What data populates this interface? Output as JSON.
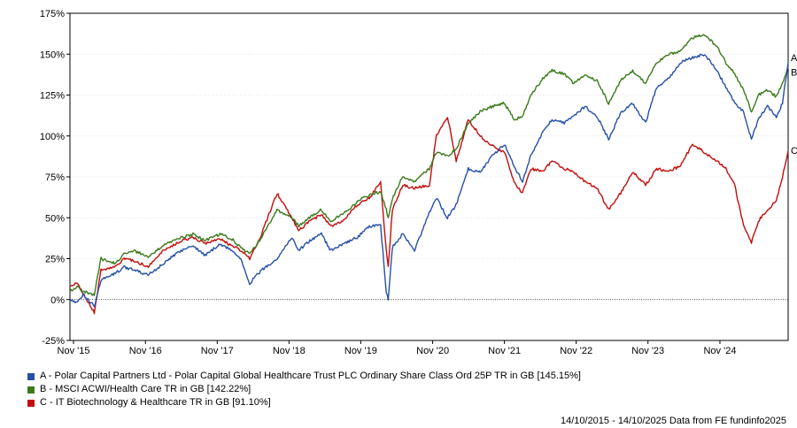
{
  "chart_data": {
    "type": "line",
    "title": "",
    "xlabel": "",
    "ylabel": "",
    "ylim": [
      -25,
      175
    ],
    "y_ticks": [
      "175%",
      "150%",
      "125%",
      "100%",
      "75%",
      "50%",
      "25%",
      "0%",
      "-25%"
    ],
    "y_tick_values": [
      175,
      150,
      125,
      100,
      75,
      50,
      25,
      0,
      -25
    ],
    "x_range": [
      "2015-10-14",
      "2025-10-14"
    ],
    "x_ticks": [
      "Nov '15",
      "Nov '16",
      "Nov '17",
      "Nov '18",
      "Nov '19",
      "Nov '20",
      "Nov '21",
      "Nov '22",
      "Nov '23",
      "Nov '24"
    ],
    "x_tick_dates": [
      "2015-11-01",
      "2016-11-01",
      "2017-11-01",
      "2018-11-01",
      "2019-11-01",
      "2020-11-01",
      "2021-11-01",
      "2022-11-01",
      "2023-11-01",
      "2024-11-01"
    ],
    "grid": "horizontal dotted",
    "zero_line": "dotted",
    "series": [
      {
        "name": "A - Polar Capital Partners Ltd - Polar Capital Global Healthcare Trust PLC Ordinary Share Class Ord 25P TR in GB [145.15%]",
        "end_label": "A",
        "color": "#2650a6",
        "x": [
          "2015-10-14",
          "2015-11-20",
          "2015-12-20",
          "2016-02-15",
          "2016-03-20",
          "2016-06-01",
          "2016-07-15",
          "2016-09-01",
          "2016-11-15",
          "2017-02-01",
          "2017-05-01",
          "2017-07-01",
          "2017-09-01",
          "2017-11-15",
          "2018-01-15",
          "2018-03-01",
          "2018-04-15",
          "2018-06-15",
          "2018-09-01",
          "2018-11-15",
          "2018-12-20",
          "2019-02-15",
          "2019-04-15",
          "2019-06-01",
          "2019-08-01",
          "2019-10-15",
          "2019-12-15",
          "2020-02-10",
          "2020-03-10",
          "2020-03-20",
          "2020-04-10",
          "2020-06-01",
          "2020-08-01",
          "2020-10-15",
          "2020-11-20",
          "2021-01-15",
          "2021-03-01",
          "2021-05-01",
          "2021-07-01",
          "2021-09-01",
          "2021-11-01",
          "2021-12-20",
          "2022-02-01",
          "2022-03-15",
          "2022-05-15",
          "2022-07-01",
          "2022-09-01",
          "2022-10-20",
          "2022-12-15",
          "2023-02-15",
          "2023-04-15",
          "2023-06-15",
          "2023-08-15",
          "2023-10-20",
          "2023-12-15",
          "2024-02-15",
          "2024-04-15",
          "2024-06-15",
          "2024-08-15",
          "2024-10-15",
          "2024-12-01",
          "2025-01-15",
          "2025-03-01",
          "2025-04-10",
          "2025-05-15",
          "2025-07-01",
          "2025-08-15",
          "2025-09-15",
          "2025-10-14"
        ],
        "values": [
          0,
          -2,
          3,
          -4,
          12,
          16,
          20,
          18,
          15,
          22,
          30,
          33,
          27,
          34,
          30,
          25,
          10,
          18,
          25,
          38,
          30,
          36,
          40,
          30,
          34,
          38,
          45,
          45,
          5,
          0,
          32,
          40,
          30,
          53,
          62,
          50,
          58,
          80,
          78,
          88,
          95,
          82,
          72,
          88,
          102,
          110,
          108,
          112,
          118,
          112,
          98,
          114,
          120,
          108,
          130,
          135,
          145,
          148,
          150,
          140,
          130,
          120,
          115,
          98,
          110,
          118,
          112,
          120,
          145.15
        ]
      },
      {
        "name": "B - MSCI ACWI/Health Care TR in GB [142.22%]",
        "end_label": "B",
        "color": "#3a7a1b",
        "x": [
          "2015-10-14",
          "2015-11-20",
          "2015-12-20",
          "2016-02-15",
          "2016-03-20",
          "2016-06-01",
          "2016-07-15",
          "2016-09-01",
          "2016-11-15",
          "2017-02-01",
          "2017-05-01",
          "2017-07-01",
          "2017-09-01",
          "2017-11-15",
          "2018-01-15",
          "2018-03-01",
          "2018-04-15",
          "2018-06-15",
          "2018-09-01",
          "2018-11-15",
          "2018-12-20",
          "2019-02-15",
          "2019-04-15",
          "2019-06-01",
          "2019-08-01",
          "2019-10-15",
          "2019-12-15",
          "2020-02-10",
          "2020-03-10",
          "2020-03-20",
          "2020-04-10",
          "2020-06-01",
          "2020-08-01",
          "2020-10-15",
          "2020-11-20",
          "2021-01-15",
          "2021-03-01",
          "2021-05-01",
          "2021-07-01",
          "2021-09-01",
          "2021-11-01",
          "2021-12-20",
          "2022-02-01",
          "2022-03-15",
          "2022-05-15",
          "2022-07-01",
          "2022-09-01",
          "2022-10-20",
          "2022-12-15",
          "2023-02-15",
          "2023-04-15",
          "2023-06-15",
          "2023-08-15",
          "2023-10-20",
          "2023-12-15",
          "2024-02-15",
          "2024-04-15",
          "2024-06-15",
          "2024-08-15",
          "2024-10-15",
          "2024-12-01",
          "2025-01-15",
          "2025-03-01",
          "2025-04-10",
          "2025-05-15",
          "2025-07-01",
          "2025-08-15",
          "2025-09-15",
          "2025-10-14"
        ],
        "values": [
          5,
          8,
          5,
          3,
          25,
          22,
          28,
          30,
          26,
          33,
          38,
          40,
          36,
          40,
          37,
          32,
          28,
          38,
          55,
          50,
          45,
          50,
          55,
          48,
          52,
          60,
          64,
          66,
          55,
          50,
          62,
          75,
          72,
          80,
          90,
          88,
          92,
          108,
          115,
          118,
          120,
          110,
          112,
          125,
          135,
          140,
          138,
          132,
          137,
          134,
          120,
          134,
          140,
          132,
          145,
          150,
          152,
          160,
          162,
          155,
          145,
          138,
          128,
          115,
          125,
          128,
          124,
          132,
          142.22
        ]
      },
      {
        "name": "C - IT Biotechnology & Healthcare TR in GB [91.10%]",
        "end_label": "C",
        "color": "#c40c0c",
        "x": [
          "2015-10-14",
          "2015-11-20",
          "2015-12-20",
          "2016-02-15",
          "2016-03-20",
          "2016-06-01",
          "2016-07-15",
          "2016-09-01",
          "2016-11-15",
          "2017-02-01",
          "2017-05-01",
          "2017-07-01",
          "2017-09-01",
          "2017-11-15",
          "2018-01-15",
          "2018-03-01",
          "2018-04-15",
          "2018-06-15",
          "2018-09-01",
          "2018-11-15",
          "2018-12-20",
          "2019-02-15",
          "2019-04-15",
          "2019-06-01",
          "2019-08-01",
          "2019-10-15",
          "2019-12-15",
          "2020-02-10",
          "2020-03-10",
          "2020-03-20",
          "2020-04-10",
          "2020-06-01",
          "2020-08-01",
          "2020-10-15",
          "2020-11-20",
          "2021-01-15",
          "2021-03-01",
          "2021-05-01",
          "2021-07-01",
          "2021-09-01",
          "2021-11-01",
          "2021-12-20",
          "2022-02-01",
          "2022-03-15",
          "2022-05-15",
          "2022-07-01",
          "2022-09-01",
          "2022-10-20",
          "2022-12-15",
          "2023-02-15",
          "2023-04-15",
          "2023-06-15",
          "2023-08-15",
          "2023-10-20",
          "2023-12-15",
          "2024-02-15",
          "2024-04-15",
          "2024-06-15",
          "2024-08-15",
          "2024-10-15",
          "2024-12-01",
          "2025-01-15",
          "2025-03-01",
          "2025-04-10",
          "2025-05-15",
          "2025-07-01",
          "2025-08-15",
          "2025-09-15",
          "2025-10-14"
        ],
        "values": [
          8,
          10,
          4,
          -8,
          18,
          20,
          25,
          24,
          20,
          30,
          36,
          38,
          34,
          37,
          33,
          30,
          25,
          40,
          65,
          50,
          42,
          48,
          52,
          45,
          48,
          58,
          62,
          72,
          30,
          20,
          55,
          70,
          68,
          70,
          100,
          112,
          85,
          110,
          100,
          94,
          90,
          72,
          65,
          80,
          78,
          85,
          80,
          78,
          72,
          68,
          55,
          65,
          78,
          70,
          80,
          78,
          82,
          95,
          90,
          85,
          80,
          70,
          45,
          35,
          48,
          55,
          60,
          75,
          91.1
        ]
      }
    ]
  },
  "legend": [
    {
      "label": "A - Polar Capital Partners Ltd - Polar Capital Global Healthcare Trust PLC Ordinary Share Class Ord 25P TR in GB [145.15%]",
      "color": "#2650a6"
    },
    {
      "label": "B - MSCI ACWI/Health Care TR in GB [142.22%]",
      "color": "#3a7a1b"
    },
    {
      "label": "C - IT Biotechnology & Healthcare TR in GB [91.10%]",
      "color": "#c40c0c"
    }
  ],
  "footer": "14/10/2015 - 14/10/2025 Data from FE fundinfo2025"
}
